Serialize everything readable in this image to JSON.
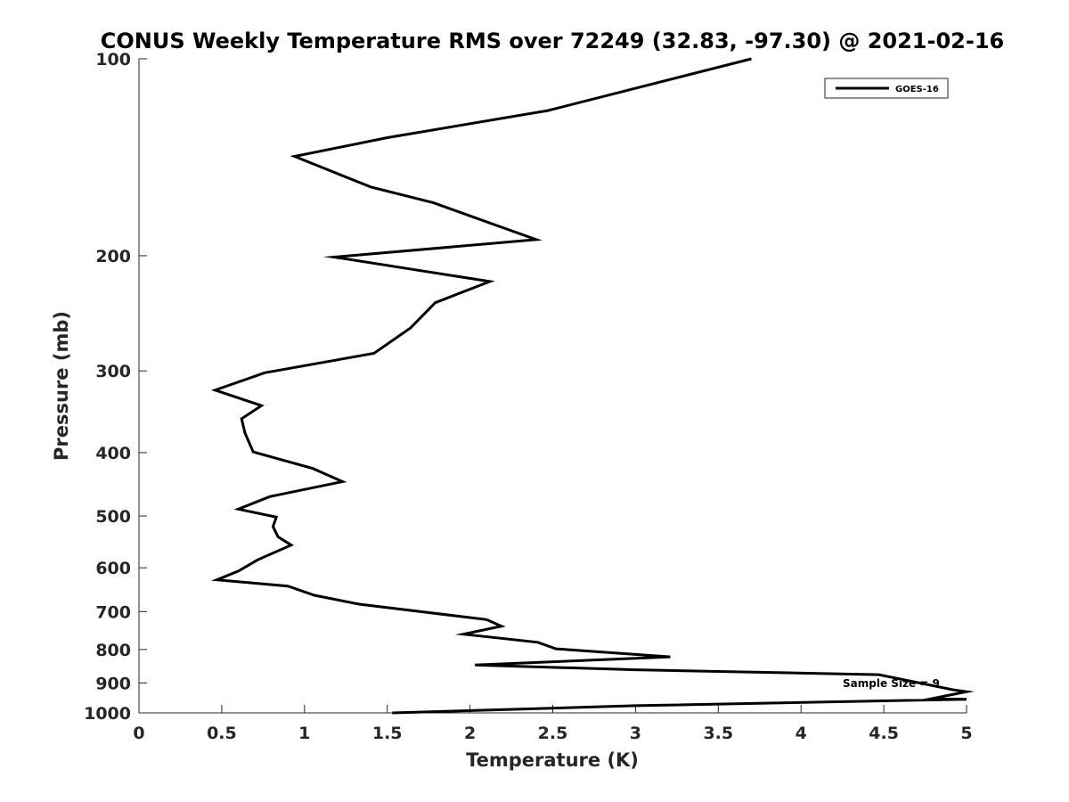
{
  "chart_data": {
    "type": "line",
    "title": "CONUS Weekly Temperature RMS over 72249 (32.83, -97.30) @ 2021-02-16",
    "xlabel": "Temperature (K)",
    "ylabel": "Pressure (mb)",
    "xlim": [
      0,
      5
    ],
    "ylim": [
      1000,
      100
    ],
    "yscale": "log",
    "y_reversed": true,
    "x_ticks": [
      "0",
      "0.5",
      "1",
      "1.5",
      "2",
      "2.5",
      "3",
      "3.5",
      "4",
      "4.5",
      "5"
    ],
    "y_ticks": [
      "100",
      "200",
      "300",
      "400",
      "500",
      "600",
      "700",
      "800",
      "900",
      "1000"
    ],
    "grid": false,
    "legend": {
      "position": "top-right",
      "entries": [
        "GOES-16"
      ]
    },
    "annotation": "Sample Size = 9",
    "series": [
      {
        "name": "GOES-16",
        "color": "#000000",
        "points": [
          [
            3.7,
            100
          ],
          [
            2.47,
            120
          ],
          [
            1.5,
            132
          ],
          [
            0.94,
            141
          ],
          [
            1.4,
            157
          ],
          [
            1.78,
            166
          ],
          [
            2.4,
            189
          ],
          [
            1.18,
            201
          ],
          [
            2.12,
            219
          ],
          [
            1.79,
            236
          ],
          [
            1.64,
            258
          ],
          [
            1.42,
            282
          ],
          [
            0.76,
            302
          ],
          [
            0.46,
            321
          ],
          [
            0.74,
            339
          ],
          [
            0.62,
            355
          ],
          [
            0.64,
            373
          ],
          [
            0.69,
            399
          ],
          [
            1.05,
            423
          ],
          [
            1.23,
            443
          ],
          [
            0.79,
            467
          ],
          [
            0.6,
            488
          ],
          [
            0.83,
            502
          ],
          [
            0.81,
            519
          ],
          [
            0.84,
            538
          ],
          [
            0.92,
            554
          ],
          [
            0.72,
            583
          ],
          [
            0.6,
            607
          ],
          [
            0.47,
            626
          ],
          [
            0.9,
            640
          ],
          [
            1.06,
            661
          ],
          [
            1.33,
            682
          ],
          [
            2.1,
            720
          ],
          [
            2.19,
            737
          ],
          [
            1.96,
            758
          ],
          [
            2.41,
            780
          ],
          [
            2.52,
            798
          ],
          [
            3.21,
            821
          ],
          [
            2.03,
            845
          ],
          [
            3.0,
            859
          ],
          [
            4.47,
            874
          ],
          [
            4.92,
            922
          ],
          [
            5.0,
            928
          ],
          [
            4.8,
            950
          ],
          [
            5.0,
            953
          ],
          [
            3.0,
            975
          ],
          [
            1.53,
            1000
          ]
        ]
      }
    ]
  }
}
